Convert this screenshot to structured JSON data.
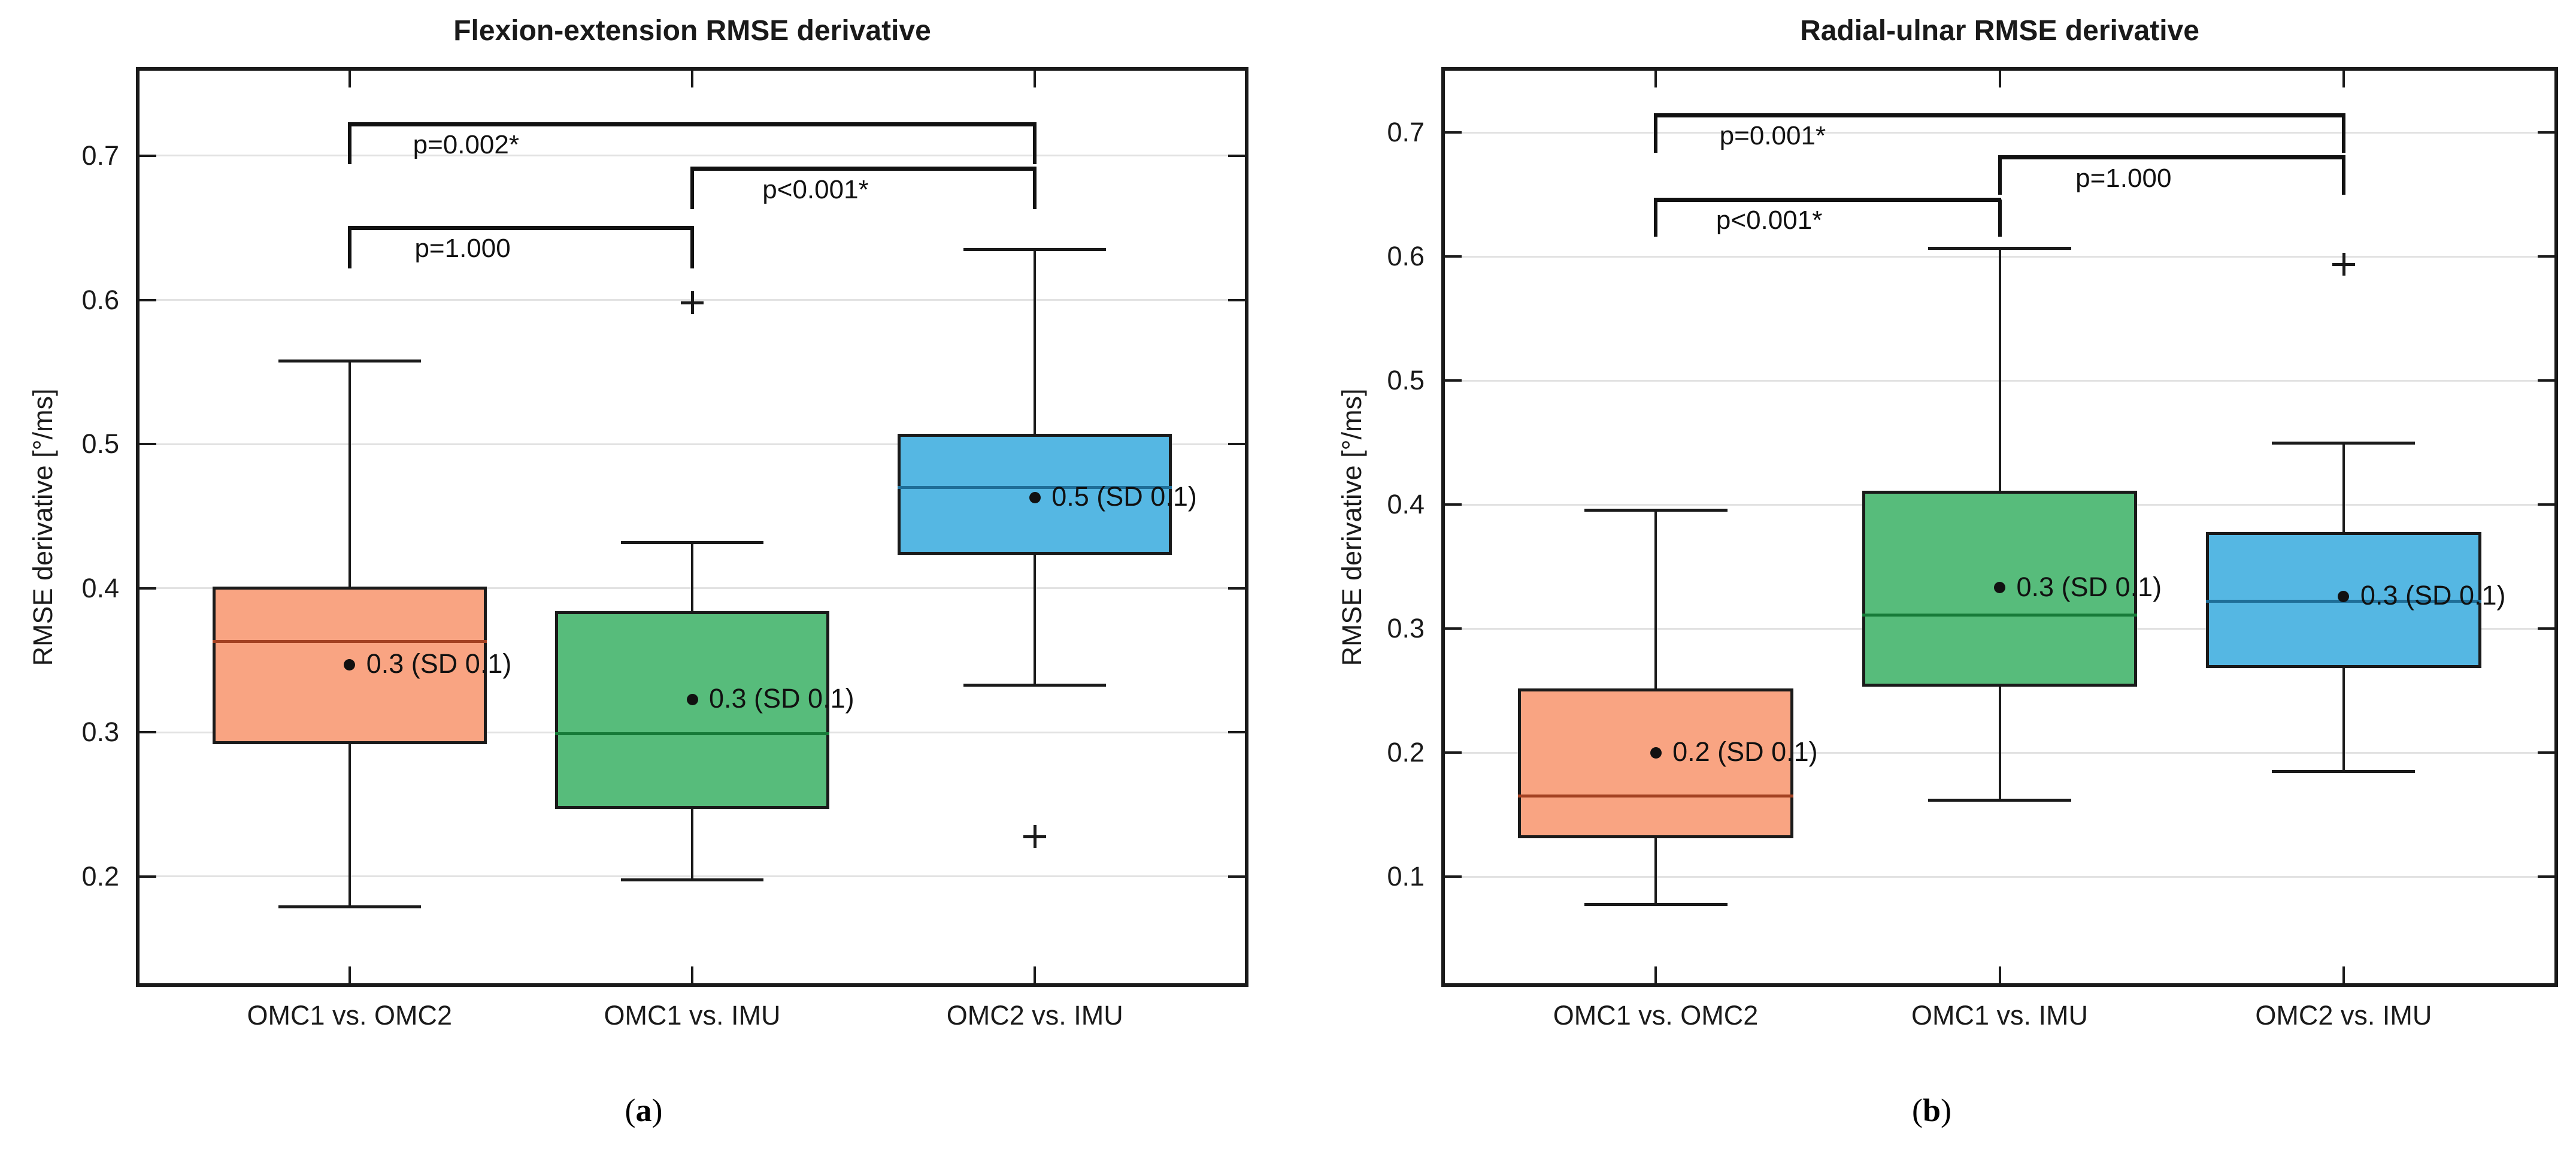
{
  "chart_data": [
    {
      "type": "box",
      "panel": "left",
      "title": "Flexion-extension RMSE derivative",
      "ylabel": "RMSE derivative [°/ms]",
      "xlabel": "",
      "categories": [
        "OMC1 vs. OMC2",
        "OMC1 vs. IMU",
        "OMC2 vs. IMU"
      ],
      "yticks": [
        0.2,
        0.3,
        0.4,
        0.5,
        0.6,
        0.7
      ],
      "ylim": [
        0.126,
        0.759
      ],
      "grid": "horizontal",
      "legend": "none",
      "label_open": "(",
      "label_letter": "a",
      "label_close": ")",
      "grid_color": "#e2e2e2",
      "axis_color": "#1a1a1a",
      "series": [
        {
          "category": "OMC1 vs. OMC2",
          "box_color": "#f9a482",
          "median_color": "#a34122",
          "whisker_low": 0.179,
          "q1": 0.292,
          "median": 0.363,
          "q3": 0.401,
          "whisker_high": 0.558,
          "mean": 0.347,
          "outliers": [],
          "annotation": "0.3 (SD 0.1)"
        },
        {
          "category": "OMC1 vs. IMU",
          "box_color": "#57bc7b",
          "median_color": "#167a38",
          "whisker_low": 0.198,
          "q1": 0.247,
          "median": 0.299,
          "q3": 0.384,
          "whisker_high": 0.432,
          "mean": 0.323,
          "outliers": [
            0.598
          ],
          "annotation": "0.3 (SD 0.1)"
        },
        {
          "category": "OMC2 vs. IMU",
          "box_color": "#55b7e3",
          "median_color": "#1f6e98",
          "whisker_low": 0.333,
          "q1": 0.423,
          "median": 0.47,
          "q3": 0.507,
          "whisker_high": 0.635,
          "mean": 0.463,
          "outliers": [
            0.228
          ],
          "annotation": "0.5 (SD 0.1)"
        }
      ],
      "significance_brackets": [
        {
          "from": 0,
          "to": 2,
          "label": "p=0.002*",
          "y": 0.722,
          "drop": 0.028,
          "label_anchor": 0.17
        },
        {
          "from": 1,
          "to": 2,
          "label": "p<0.001*",
          "y": 0.691,
          "drop": 0.028,
          "label_anchor": 0.36
        },
        {
          "from": 0,
          "to": 1,
          "label": "p=1.000",
          "y": 0.65,
          "drop": 0.028,
          "label_anchor": 0.33
        }
      ]
    },
    {
      "type": "box",
      "panel": "right",
      "title": "Radial-ulnar RMSE derivative",
      "ylabel": "RMSE derivative [°/ms]",
      "xlabel": "",
      "categories": [
        "OMC1 vs. OMC2",
        "OMC1 vs. IMU",
        "OMC2 vs. IMU"
      ],
      "yticks": [
        0.1,
        0.2,
        0.3,
        0.4,
        0.5,
        0.6,
        0.7
      ],
      "ylim": [
        0.014,
        0.75
      ],
      "grid": "horizontal",
      "legend": "none",
      "label_open": "(",
      "label_letter": "b",
      "label_close": ")",
      "grid_color": "#e2e2e2",
      "axis_color": "#1a1a1a",
      "series": [
        {
          "category": "OMC1 vs. OMC2",
          "box_color": "#f9a482",
          "median_color": "#a34122",
          "whisker_low": 0.078,
          "q1": 0.131,
          "median": 0.165,
          "q3": 0.252,
          "whisker_high": 0.396,
          "mean": 0.2,
          "outliers": [],
          "annotation": "0.2 (SD 0.1)"
        },
        {
          "category": "OMC1 vs. IMU",
          "box_color": "#57bc7b",
          "median_color": "#167a38",
          "whisker_low": 0.162,
          "q1": 0.253,
          "median": 0.311,
          "q3": 0.411,
          "whisker_high": 0.607,
          "mean": 0.333,
          "outliers": [],
          "annotation": "0.3 (SD 0.1)"
        },
        {
          "category": "OMC2 vs. IMU",
          "box_color": "#55b7e3",
          "median_color": "#1f6e98",
          "whisker_low": 0.185,
          "q1": 0.268,
          "median": 0.322,
          "q3": 0.378,
          "whisker_high": 0.45,
          "mean": 0.326,
          "outliers": [
            0.594
          ],
          "annotation": "0.3 (SD 0.1)"
        }
      ],
      "significance_brackets": [
        {
          "from": 0,
          "to": 2,
          "label": "p=0.001*",
          "y": 0.714,
          "drop": 0.03,
          "label_anchor": 0.17
        },
        {
          "from": 1,
          "to": 2,
          "label": "p=1.000",
          "y": 0.68,
          "drop": 0.03,
          "label_anchor": 0.36
        },
        {
          "from": 0,
          "to": 1,
          "label": "p<0.001*",
          "y": 0.646,
          "drop": 0.03,
          "label_anchor": 0.33
        }
      ]
    }
  ]
}
